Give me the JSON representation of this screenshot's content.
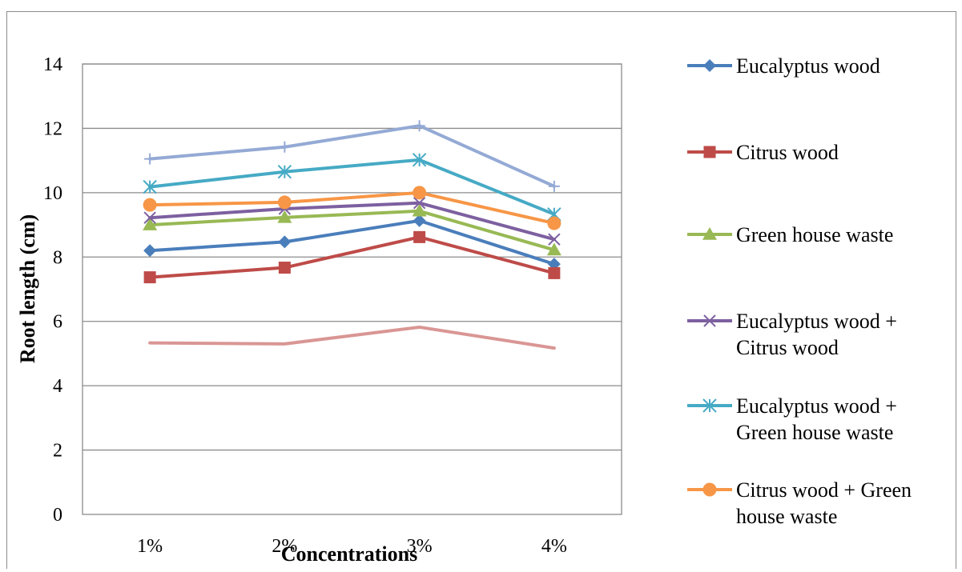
{
  "chart_data": {
    "type": "line",
    "categories": [
      "1%",
      "2%",
      "3%",
      "4%"
    ],
    "xlabel": "Concentrations",
    "ylabel": "Root length (cm)",
    "ylim": [
      0,
      14
    ],
    "yticks": [
      0,
      2,
      4,
      6,
      8,
      10,
      12,
      14
    ],
    "grid": "horizontal",
    "legend_position": "right",
    "series": [
      {
        "name": "Eucalyptus wood",
        "values": [
          8.2,
          8.47,
          9.13,
          7.78
        ],
        "color": "#4a7ebb",
        "marker": "diamond"
      },
      {
        "name": "Citrus wood",
        "values": [
          7.37,
          7.67,
          8.62,
          7.5
        ],
        "color": "#be4b48",
        "marker": "square"
      },
      {
        "name": "Green house waste",
        "values": [
          9.0,
          9.23,
          9.43,
          8.22
        ],
        "color": "#98b954",
        "marker": "triangle"
      },
      {
        "name": "Eucalyptus wood + Citrus wood",
        "values": [
          9.22,
          9.5,
          9.68,
          8.55
        ],
        "color": "#7d60a0",
        "marker": "x"
      },
      {
        "name": "Eucalyptus wood + Green house waste",
        "values": [
          10.18,
          10.65,
          11.02,
          9.33
        ],
        "color": "#46aac5",
        "marker": "star"
      },
      {
        "name": "Citrus wood + Green house waste",
        "values": [
          9.62,
          9.7,
          10.0,
          9.05
        ],
        "color": "#f79646",
        "marker": "circle"
      },
      {
        "values": [
          11.05,
          11.42,
          12.08,
          10.2
        ],
        "color": "#94aad5",
        "marker": "plus"
      },
      {
        "values": [
          5.33,
          5.3,
          5.82,
          5.17
        ],
        "color": "#d99694",
        "marker": "none"
      }
    ]
  }
}
